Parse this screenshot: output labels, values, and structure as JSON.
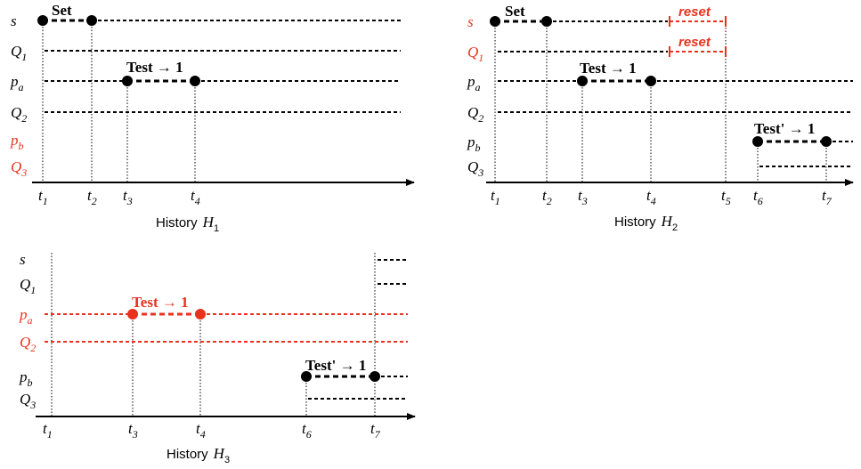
{
  "colors": {
    "ink": "#000000",
    "highlight": "#e8321e"
  },
  "panels": [
    {
      "caption_text": "History",
      "caption_var": "H",
      "caption_sub": "1",
      "rows": [
        {
          "main": "s",
          "sub": "",
          "highlight": false
        },
        {
          "main": "Q",
          "sub": "1",
          "highlight": false
        },
        {
          "main": "p",
          "sub": "a",
          "highlight": false
        },
        {
          "main": "Q",
          "sub": "2",
          "highlight": false
        },
        {
          "main": "p",
          "sub": "b",
          "highlight": true
        },
        {
          "main": "Q",
          "sub": "3",
          "highlight": true
        }
      ],
      "ticks": [
        {
          "main": "t",
          "sub": "1"
        },
        {
          "main": "t",
          "sub": "2"
        },
        {
          "main": "t",
          "sub": "3"
        },
        {
          "main": "t",
          "sub": "4"
        }
      ],
      "labels": [
        {
          "text": "Set",
          "style": "bold",
          "highlight": false
        },
        {
          "text": "Test → 1",
          "style": "bold",
          "highlight": false
        }
      ]
    },
    {
      "caption_text": "History",
      "caption_var": "H",
      "caption_sub": "2",
      "rows": [
        {
          "main": "s",
          "sub": "",
          "highlight": true
        },
        {
          "main": "Q",
          "sub": "1",
          "highlight": true
        },
        {
          "main": "p",
          "sub": "a",
          "highlight": false
        },
        {
          "main": "Q",
          "sub": "2",
          "highlight": false
        },
        {
          "main": "p",
          "sub": "b",
          "highlight": false
        },
        {
          "main": "Q",
          "sub": "3",
          "highlight": false
        }
      ],
      "ticks": [
        {
          "main": "t",
          "sub": "1"
        },
        {
          "main": "t",
          "sub": "2"
        },
        {
          "main": "t",
          "sub": "3"
        },
        {
          "main": "t",
          "sub": "4"
        },
        {
          "main": "t",
          "sub": "5"
        },
        {
          "main": "t",
          "sub": "6"
        },
        {
          "main": "t",
          "sub": "7"
        }
      ],
      "labels": [
        {
          "text": "Set",
          "style": "bold",
          "highlight": false
        },
        {
          "text": "reset",
          "style": "bolditalic",
          "highlight": true
        },
        {
          "text": "reset",
          "style": "bolditalic",
          "highlight": true
        },
        {
          "text": "Test → 1",
          "style": "bold",
          "highlight": false
        },
        {
          "text": "Test' → 1",
          "style": "bold",
          "highlight": false
        }
      ]
    },
    {
      "caption_text": "History",
      "caption_var": "H",
      "caption_sub": "3",
      "rows": [
        {
          "main": "s",
          "sub": "",
          "highlight": false
        },
        {
          "main": "Q",
          "sub": "1",
          "highlight": false
        },
        {
          "main": "p",
          "sub": "a",
          "highlight": true
        },
        {
          "main": "Q",
          "sub": "2",
          "highlight": true
        },
        {
          "main": "p",
          "sub": "b",
          "highlight": false
        },
        {
          "main": "Q",
          "sub": "3",
          "highlight": false
        }
      ],
      "ticks": [
        {
          "main": "t",
          "sub": "1"
        },
        {
          "main": "t",
          "sub": "3"
        },
        {
          "main": "t",
          "sub": "4"
        },
        {
          "main": "t",
          "sub": "6"
        },
        {
          "main": "t",
          "sub": "7"
        }
      ],
      "labels": [
        {
          "text": "Test → 1",
          "style": "bold",
          "highlight": true
        },
        {
          "text": "Test' → 1",
          "style": "bold",
          "highlight": false
        }
      ]
    }
  ]
}
